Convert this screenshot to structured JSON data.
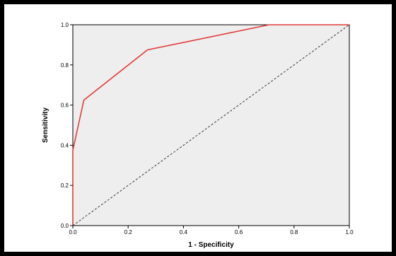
{
  "chart_data": {
    "type": "line",
    "title": "",
    "xlabel": "1 - Specificity",
    "ylabel": "Sensitivity",
    "xlim": [
      0.0,
      1.0
    ],
    "ylim": [
      0.0,
      1.0
    ],
    "xticks": [
      "0.0",
      "0.2",
      "0.4",
      "0.6",
      "0.8",
      "1.0"
    ],
    "yticks": [
      "0.0",
      "0.2",
      "0.4",
      "0.6",
      "0.8",
      "1.0"
    ],
    "grid": false,
    "legend": "none",
    "series": [
      {
        "role": "roc-curve",
        "color": "#e23a3a",
        "line_style": "solid",
        "x": [
          0.0,
          0.0,
          0.04,
          0.27,
          0.71,
          1.0
        ],
        "y": [
          0.0,
          0.375,
          0.625,
          0.875,
          1.0,
          1.0
        ]
      },
      {
        "role": "reference-line",
        "color": "#222222",
        "line_style": "dashed",
        "x": [
          0.0,
          1.0
        ],
        "y": [
          0.0,
          1.0
        ]
      }
    ]
  }
}
